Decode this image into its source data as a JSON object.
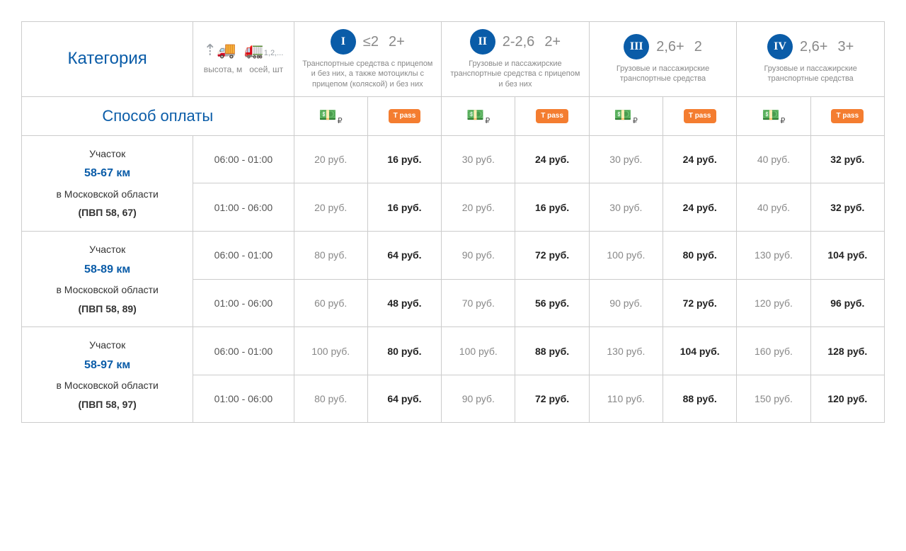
{
  "header": {
    "category_label": "Категория",
    "height_label": "высота, м",
    "axles_label": "осей, шт",
    "axles_hint": "1,2,...",
    "payment_label": "Способ оплаты"
  },
  "categories": [
    {
      "roman": "I",
      "height": "≤2",
      "axles": "2+",
      "desc": "Транспортные средства с прицепом и без них, а также мотоциклы с прицепом (коляской) и без них"
    },
    {
      "roman": "II",
      "height": "2-2,6",
      "axles": "2+",
      "desc": "Грузовые и пассажирские транспортные средства с прицепом и без них"
    },
    {
      "roman": "III",
      "height": "2,6+",
      "axles": "2",
      "desc": "Грузовые и пассажирские транспортные средства"
    },
    {
      "roman": "IV",
      "height": "2,6+",
      "axles": "3+",
      "desc": "Грузовые и пассажирские транспортные средства"
    }
  ],
  "icons": {
    "tpass_label": "T pass"
  },
  "currency_suffix": " руб.",
  "sections": [
    {
      "label": "Участок",
      "km": "58-67 км",
      "region": "в Московской области",
      "pvp": "(ПВП 58, 67)",
      "rows": [
        {
          "time": "06:00 - 01:00",
          "prices": [
            [
              20,
              16
            ],
            [
              30,
              24
            ],
            [
              30,
              24
            ],
            [
              40,
              32
            ]
          ]
        },
        {
          "time": "01:00 - 06:00",
          "prices": [
            [
              20,
              16
            ],
            [
              20,
              16
            ],
            [
              30,
              24
            ],
            [
              40,
              32
            ]
          ]
        }
      ]
    },
    {
      "label": "Участок",
      "km": "58-89 км",
      "region": "в Московской области",
      "pvp": "(ПВП 58, 89)",
      "rows": [
        {
          "time": "06:00 - 01:00",
          "prices": [
            [
              80,
              64
            ],
            [
              90,
              72
            ],
            [
              100,
              80
            ],
            [
              130,
              104
            ]
          ]
        },
        {
          "time": "01:00 - 06:00",
          "prices": [
            [
              60,
              48
            ],
            [
              70,
              56
            ],
            [
              90,
              72
            ],
            [
              120,
              96
            ]
          ]
        }
      ]
    },
    {
      "label": "Участок",
      "km": "58-97 км",
      "region": "в Московской области",
      "pvp": "(ПВП 58, 97)",
      "rows": [
        {
          "time": "06:00 - 01:00",
          "prices": [
            [
              100,
              80
            ],
            [
              100,
              88
            ],
            [
              130,
              104
            ],
            [
              160,
              128
            ]
          ]
        },
        {
          "time": "01:00 - 06:00",
          "prices": [
            [
              80,
              64
            ],
            [
              90,
              72
            ],
            [
              110,
              88
            ],
            [
              150,
              120
            ]
          ]
        }
      ]
    }
  ],
  "colors": {
    "accent": "#0a5ca8",
    "border": "#cccccc",
    "muted_text": "#888888",
    "tpass_bg": "#f47d30"
  }
}
